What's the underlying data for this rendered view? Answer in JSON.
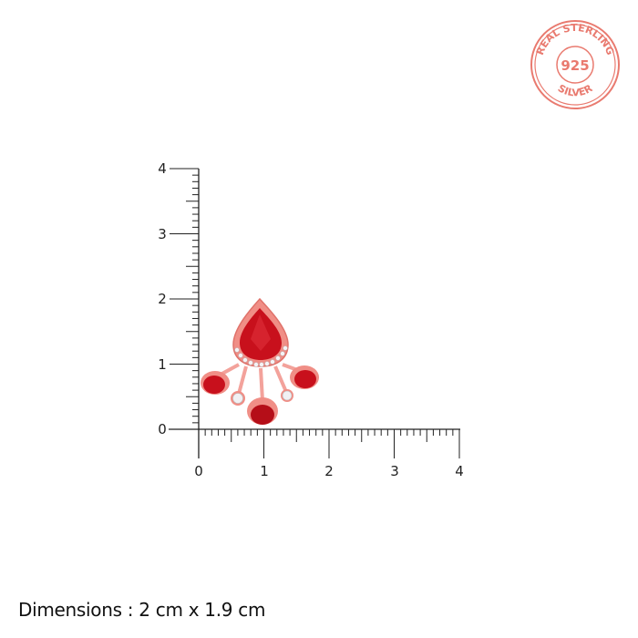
{
  "stamp": {
    "top_text": "REAL STERLING",
    "center_text": "925",
    "bottom_text": "SILVER",
    "color": "#e97a6f"
  },
  "ruler": {
    "unit": "cm",
    "x_ticks": [
      "0",
      "1",
      "2",
      "3",
      "4"
    ],
    "y_ticks": [
      "0",
      "1",
      "2",
      "3",
      "4"
    ],
    "range": [
      0,
      4
    ],
    "minor_step": 0.1
  },
  "product": {
    "type": "earring",
    "metal_color": "#f08e86",
    "stone_color": "#c8101c",
    "width_cm": 2,
    "height_cm": 1.9
  },
  "caption": "Dimensions : 2 cm x 1.9 cm"
}
